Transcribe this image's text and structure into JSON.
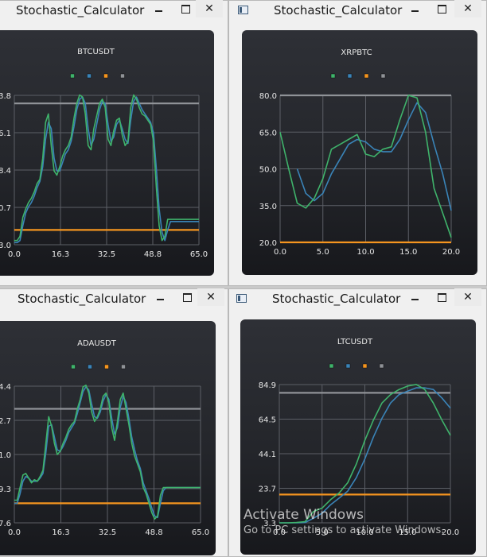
{
  "colors": {
    "series_k": "#3fb36b",
    "series_d": "#3a84b8",
    "oversold": "#f5951f",
    "overbought": "#8f9297"
  },
  "windows": [
    {
      "title": "Stochastic_Calculator",
      "controls": {
        "minimize": "",
        "maximize": "",
        "close": "✕"
      },
      "chart_data": {
        "type": "line",
        "title": "BTCUSDT",
        "legend": [
          "",
          "",
          "",
          ""
        ],
        "xlim": [
          0,
          65
        ],
        "ylim": [
          13.0,
          83.8
        ],
        "xticks": [
          "0.0",
          "16.3",
          "32.5",
          "48.8",
          "65.0"
        ],
        "yticks": [
          "13.0",
          "30.7",
          "48.4",
          "66.1",
          "83.8"
        ],
        "grid": true,
        "series": [
          {
            "color": "series_k",
            "x": [
              0,
              1,
              2,
              3,
              4,
              5,
              6,
              7,
              8,
              9,
              10,
              11,
              12,
              13,
              14,
              15,
              16,
              17,
              18,
              19,
              20,
              21,
              22,
              23,
              24,
              25,
              26,
              27,
              28,
              29,
              30,
              31,
              32,
              33,
              34,
              35,
              36,
              37,
              38,
              39,
              40,
              41,
              42,
              43,
              44,
              45,
              46,
              47,
              48,
              49,
              50,
              51,
              52,
              53,
              54,
              55,
              56,
              57,
              58,
              59,
              60,
              61,
              62,
              63,
              64,
              65
            ],
            "y": [
              15,
              15,
              17,
              26,
              30,
              33,
              35,
              38,
              42,
              44,
              54,
              71,
              75,
              60,
              48,
              46,
              50,
              55,
              58,
              60,
              64,
              73,
              80,
              84,
              83,
              75,
              60,
              58,
              68,
              74,
              80,
              82,
              78,
              63,
              60,
              67,
              72,
              73,
              65,
              60,
              62,
              78,
              84,
              82,
              78,
              75,
              74,
              72,
              70,
              62,
              40,
              22,
              15,
              17,
              25,
              25,
              25,
              25,
              25,
              25,
              25,
              25,
              25,
              25,
              25,
              25
            ]
          },
          {
            "color": "series_d",
            "x": [
              0,
              1,
              2,
              3,
              4,
              5,
              6,
              7,
              8,
              9,
              10,
              11,
              12,
              13,
              14,
              15,
              16,
              17,
              18,
              19,
              20,
              21,
              22,
              23,
              24,
              25,
              26,
              27,
              28,
              29,
              30,
              31,
              32,
              33,
              34,
              35,
              36,
              37,
              38,
              39,
              40,
              41,
              42,
              43,
              44,
              45,
              46,
              47,
              48,
              49,
              50,
              51,
              52,
              53,
              54,
              55,
              56,
              57,
              58,
              59,
              60,
              61,
              62,
              63,
              64,
              65
            ],
            "y": [
              14,
              14,
              15,
              22,
              28,
              31,
              33,
              36,
              40,
              43,
              50,
              63,
              71,
              68,
              54,
              48,
              48,
              52,
              56,
              58,
              62,
              69,
              77,
              82,
              83,
              80,
              68,
              60,
              63,
              70,
              77,
              81,
              80,
              70,
              62,
              64,
              70,
              72,
              68,
              63,
              61,
              72,
              81,
              83,
              80,
              77,
              75,
              73,
              71,
              66,
              49,
              30,
              19,
              15,
              20,
              24,
              24,
              24,
              24,
              24,
              24,
              24,
              24,
              24,
              24,
              24
            ]
          },
          {
            "color": "oversold",
            "x": [
              0,
              65
            ],
            "y": [
              20,
              20
            ]
          },
          {
            "color": "overbought",
            "x": [
              0,
              65
            ],
            "y": [
              80,
              80
            ]
          }
        ]
      }
    },
    {
      "title": "Stochastic_Calculator",
      "controls": {
        "minimize": "",
        "maximize": "",
        "close": "✕"
      },
      "chart_data": {
        "type": "line",
        "title": "XRPBTC",
        "legend": [
          "",
          "",
          "",
          ""
        ],
        "xlim": [
          0,
          20
        ],
        "ylim": [
          20.0,
          80.0
        ],
        "xticks": [
          "0.0",
          "5.0",
          "10.0",
          "15.0",
          "20.0"
        ],
        "yticks": [
          "20.0",
          "35.0",
          "50.0",
          "65.0",
          "80.0"
        ],
        "grid": true,
        "series": [
          {
            "color": "series_k",
            "x": [
              0,
              1,
              2,
              3,
              4,
              5,
              6,
              7,
              8,
              9,
              10,
              11,
              12,
              13,
              14,
              15,
              16,
              17,
              18,
              19,
              20
            ],
            "y": [
              65,
              50,
              36,
              34,
              38,
              46,
              58,
              60,
              62,
              64,
              56,
              55,
              58,
              59,
              70,
              80,
              79,
              65,
              42,
              32,
              22
            ]
          },
          {
            "color": "series_d",
            "x": [
              2,
              3,
              4,
              5,
              6,
              7,
              8,
              9,
              10,
              11,
              12,
              13,
              14,
              15,
              16,
              17,
              18,
              19,
              20
            ],
            "y": [
              50,
              40,
              37,
              40,
              48,
              54,
              60,
              62,
              61,
              58,
              57,
              57,
              62,
              70,
              77,
              73,
              60,
              48,
              33
            ]
          },
          {
            "color": "oversold",
            "x": [
              0,
              20
            ],
            "y": [
              20,
              20
            ]
          },
          {
            "color": "overbought",
            "x": [
              0,
              20
            ],
            "y": [
              80,
              80
            ]
          }
        ]
      }
    },
    {
      "title": "Stochastic_Calculator",
      "controls": {
        "minimize": "",
        "maximize": "",
        "close": "✕"
      },
      "chart_data": {
        "type": "line",
        "title": "ADAUSDT",
        "legend": [
          "",
          "",
          "",
          ""
        ],
        "xlim": [
          0,
          65
        ],
        "ylim": [
          7.6,
          94.4
        ],
        "xticks": [
          "0.0",
          "16.3",
          "32.5",
          "48.8",
          "65.0"
        ],
        "yticks": [
          "7.6",
          "29.3",
          "51.0",
          "72.7",
          "94.4"
        ],
        "grid": true,
        "series": [
          {
            "color": "series_k",
            "x": [
              0,
              1,
              2,
              3,
              4,
              5,
              6,
              7,
              8,
              9,
              10,
              11,
              12,
              13,
              14,
              15,
              16,
              17,
              18,
              19,
              20,
              21,
              22,
              23,
              24,
              25,
              26,
              27,
              28,
              29,
              30,
              31,
              32,
              33,
              34,
              35,
              36,
              37,
              38,
              39,
              40,
              41,
              42,
              43,
              44,
              45,
              46,
              47,
              48,
              49,
              50,
              51,
              52,
              53,
              54,
              55,
              56,
              57,
              58,
              59,
              60,
              61,
              62,
              63,
              64,
              65
            ],
            "y": [
              22,
              22,
              30,
              38,
              39,
              36,
              33,
              35,
              34,
              37,
              41,
              58,
              75,
              69,
              58,
              51,
              53,
              58,
              62,
              67,
              70,
              72,
              80,
              86,
              94,
              95,
              90,
              78,
              72,
              75,
              80,
              88,
              90,
              84,
              68,
              60,
              72,
              86,
              90,
              80,
              70,
              58,
              50,
              45,
              40,
              30,
              26,
              20,
              14,
              10,
              12,
              25,
              30,
              30,
              30,
              30,
              30,
              30,
              30,
              30,
              30,
              30,
              30,
              30,
              30,
              30
            ]
          },
          {
            "color": "series_d",
            "x": [
              0,
              1,
              2,
              3,
              4,
              5,
              6,
              7,
              8,
              9,
              10,
              11,
              12,
              13,
              14,
              15,
              16,
              17,
              18,
              19,
              20,
              21,
              22,
              23,
              24,
              25,
              26,
              27,
              28,
              29,
              30,
              31,
              32,
              33,
              34,
              35,
              36,
              37,
              38,
              39,
              40,
              41,
              42,
              43,
              44,
              45,
              46,
              47,
              48,
              49,
              50,
              51,
              52,
              53,
              54,
              55,
              56,
              57,
              58,
              59,
              60,
              61,
              62,
              63,
              64,
              65
            ],
            "y": [
              20,
              20,
              26,
              34,
              37,
              36,
              34,
              34,
              34,
              36,
              39,
              52,
              69,
              70,
              62,
              54,
              53,
              56,
              60,
              65,
              68,
              71,
              77,
              84,
              91,
              94,
              92,
              83,
              75,
              74,
              78,
              85,
              89,
              86,
              74,
              64,
              68,
              81,
              88,
              84,
              74,
              62,
              54,
              47,
              42,
              33,
              28,
              23,
              17,
              12,
              11,
              20,
              28,
              30,
              30,
              30,
              30,
              30,
              30,
              30,
              30,
              30,
              30,
              30,
              30,
              30
            ]
          },
          {
            "color": "oversold",
            "x": [
              0,
              65
            ],
            "y": [
              20,
              20
            ]
          },
          {
            "color": "overbought",
            "x": [
              0,
              65
            ],
            "y": [
              80,
              80
            ]
          }
        ]
      }
    },
    {
      "title": "Stochastic_Calculator",
      "controls": {
        "minimize": "",
        "maximize": "",
        "close": "✕"
      },
      "chart_data": {
        "type": "line",
        "title": "LTCUSDT",
        "legend": [
          "",
          "",
          "",
          ""
        ],
        "xlim": [
          0,
          20
        ],
        "ylim": [
          3.3,
          84.9
        ],
        "xticks": [
          "0.0",
          "5.0",
          "10.0",
          "15.0",
          "20.0"
        ],
        "yticks": [
          "3.3",
          "23.7",
          "44.1",
          "64.5",
          "84.9"
        ],
        "grid": true,
        "series": [
          {
            "color": "series_k",
            "x": [
              0,
              1,
              2,
              3,
              4,
              5,
              6,
              7,
              8,
              9,
              10,
              11,
              12,
              13,
              14,
              15,
              16,
              17,
              18,
              19,
              20
            ],
            "y": [
              3.3,
              3.3,
              3.5,
              4,
              10,
              12,
              17,
              21,
              27,
              38,
              52,
              64,
              74,
              79,
              82,
              84,
              85,
              82,
              74,
              64,
              55
            ]
          },
          {
            "color": "series_d",
            "x": [
              0,
              1,
              2,
              3,
              4,
              5,
              6,
              7,
              8,
              9,
              10,
              11,
              12,
              13,
              14,
              15,
              16,
              17,
              18,
              19,
              20
            ],
            "y": [
              3.3,
              3.3,
              3.3,
              3.5,
              6,
              9,
              14,
              18,
              22,
              30,
              41,
              54,
              65,
              74,
              79,
              81,
              83,
              83,
              82,
              77,
              71
            ]
          },
          {
            "color": "oversold",
            "x": [
              0,
              20
            ],
            "y": [
              20,
              20
            ]
          },
          {
            "color": "overbought",
            "x": [
              0,
              20
            ],
            "y": [
              80,
              80
            ]
          }
        ]
      }
    }
  ],
  "activation": {
    "line1": "Activate Windows",
    "line2": "Go to PC settings to activate Windows."
  }
}
